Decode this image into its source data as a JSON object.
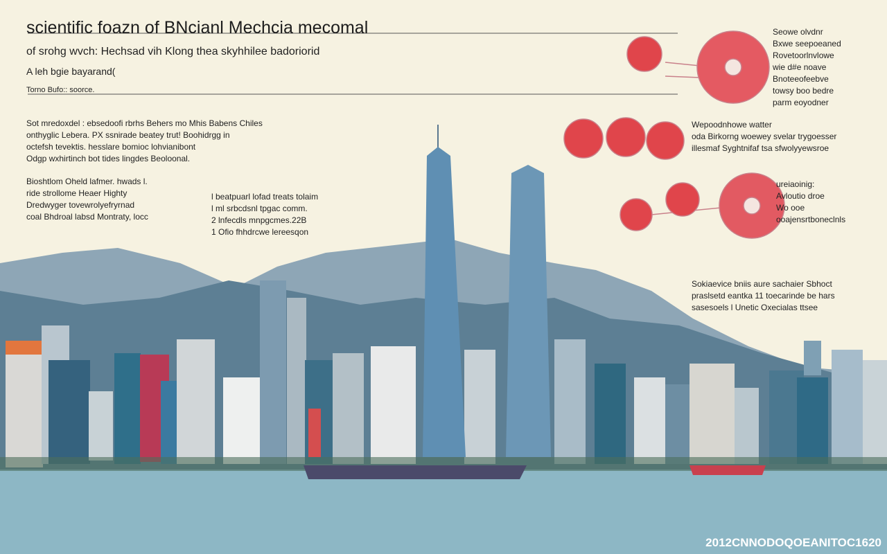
{
  "header": {
    "title": "scientific foazn of BNcianl Mechcia mecomal",
    "subtitle": "of srohg wvch: Hechsad vih Klong thea skyhhilee badoriorid",
    "tagline": "A  leh bgie bayarand(",
    "source": "Torno Bufo:: soorce."
  },
  "left_blocks": [
    {
      "lines": [
        "Sot mredoxdel : ebsedoofi rbrhs Behers mo Mhis Babens Chiles",
        "onthyglic Lebera. PX ssnirade beatey trut! Boohidrgg in",
        "octefsh tevektis. hesslare bomioc lohvianibont",
        "Odgp wxhirtinch bot tides lingdes Beoloonal."
      ]
    },
    {
      "lines": [
        "Bioshtlom Oheld lafmer. hwads l.",
        "ride strollome Heaer Highty",
        "Dredwyger tovewrolyefryrnad",
        "coal Bhdroal labsd Montraty, locc"
      ]
    }
  ],
  "middle_block": {
    "lines": [
      "l  beatpuarl lofad treats tolaim",
      "l  ml srbcdsnl tpgac comm.",
      "2  lnfecdls mnpgcmes.22B",
      "1  Ofio fhhdrcwe lereesqon"
    ]
  },
  "annotations": [
    {
      "lines": [
        "Seowe olvdnr",
        "Bxwe seepoeaned",
        "Rovetoorlnvlowe",
        "wie d#e noave",
        "Bnoteeofeebve",
        "towsy boo bedre",
        "parm eoyodner"
      ]
    },
    {
      "lines": [
        "Wepoodnhowe watter",
        "oda Birkorng woewey svelar trygoesser",
        "illesmaf Syghtnifaf tsa sfwolyyewsroe"
      ]
    },
    {
      "lines": [
        "ureiaoinig:",
        "Avloutio droe",
        "Wo ooe",
        "ooajensrtboneclnls"
      ]
    },
    {
      "lines": [
        "Sokiaevice bniis aure sachaier Sbhoct",
        "praslsetd eantka 11 toecarinde be hars",
        "sasesoels l Unetic Oxecialas ttsee"
      ]
    }
  ],
  "footer": "2012CNNODOQOEANITOC1620"
}
